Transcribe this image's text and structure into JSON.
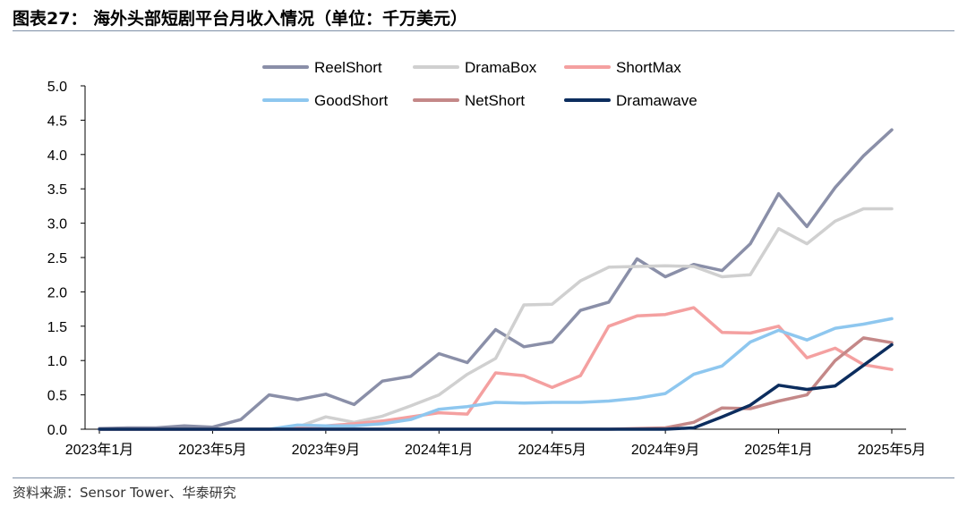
{
  "header": {
    "title": "图表27：  海外头部短剧平台月收入情况（单位：千万美元）"
  },
  "footer": {
    "source": "资料来源：Sensor Tower、华泰研究"
  },
  "chart_data": {
    "type": "line",
    "title": "",
    "xlabel": "",
    "ylabel": "",
    "ylim": [
      0,
      5
    ],
    "yticks": [
      "0.0",
      "0.5",
      "1.0",
      "1.5",
      "2.0",
      "2.5",
      "3.0",
      "3.5",
      "4.0",
      "4.5",
      "5.0"
    ],
    "x": [
      "2023-01",
      "2023-02",
      "2023-03",
      "2023-04",
      "2023-05",
      "2023-06",
      "2023-07",
      "2023-08",
      "2023-09",
      "2023-10",
      "2023-11",
      "2023-12",
      "2024-01",
      "2024-02",
      "2024-03",
      "2024-04",
      "2024-05",
      "2024-06",
      "2024-07",
      "2024-08",
      "2024-09",
      "2024-10",
      "2024-11",
      "2024-12",
      "2025-01",
      "2025-02",
      "2025-03",
      "2025-04",
      "2025-05"
    ],
    "xtick_labels": [
      {
        "index": 0,
        "label": "2023年1月"
      },
      {
        "index": 4,
        "label": "2023年5月"
      },
      {
        "index": 8,
        "label": "2023年9月"
      },
      {
        "index": 12,
        "label": "2024年1月"
      },
      {
        "index": 16,
        "label": "2024年5月"
      },
      {
        "index": 20,
        "label": "2024年9月"
      },
      {
        "index": 24,
        "label": "2025年1月"
      },
      {
        "index": 28,
        "label": "2025年5月"
      }
    ],
    "grid": false,
    "legend_position": "top-center",
    "series": [
      {
        "name": "ReelShort",
        "color": "#8a8fa8",
        "values": [
          0.01,
          0.02,
          0.02,
          0.05,
          0.03,
          0.14,
          0.5,
          0.43,
          0.51,
          0.36,
          0.7,
          0.77,
          1.1,
          0.97,
          1.45,
          1.2,
          1.27,
          1.73,
          1.85,
          2.48,
          2.22,
          2.4,
          2.31,
          2.7,
          3.43,
          2.95,
          3.52,
          3.98,
          4.36
        ]
      },
      {
        "name": "DramaBox",
        "color": "#d0d0d0",
        "values": [
          0,
          0,
          0,
          0,
          0,
          0,
          0,
          0.03,
          0.18,
          0.1,
          0.19,
          0.34,
          0.5,
          0.8,
          1.03,
          1.81,
          1.82,
          2.16,
          2.36,
          2.37,
          2.38,
          2.37,
          2.22,
          2.25,
          2.92,
          2.7,
          3.03,
          3.21,
          3.21
        ]
      },
      {
        "name": "ShortMax",
        "color": "#f4a0a0",
        "values": [
          0,
          0,
          0,
          0,
          0,
          0,
          0,
          0.02,
          0.05,
          0.08,
          0.12,
          0.18,
          0.24,
          0.22,
          0.82,
          0.78,
          0.61,
          0.78,
          1.5,
          1.65,
          1.67,
          1.77,
          1.41,
          1.4,
          1.5,
          1.04,
          1.18,
          0.94,
          0.87
        ]
      },
      {
        "name": "GoodShort",
        "color": "#8ec7ef",
        "values": [
          0,
          0,
          0,
          0,
          0,
          0,
          0,
          0.06,
          0.05,
          0.05,
          0.08,
          0.14,
          0.29,
          0.33,
          0.39,
          0.38,
          0.39,
          0.39,
          0.41,
          0.45,
          0.52,
          0.8,
          0.92,
          1.27,
          1.44,
          1.3,
          1.47,
          1.53,
          1.61
        ]
      },
      {
        "name": "NetShort",
        "color": "#c48888",
        "values": [
          0,
          0,
          0,
          0,
          0,
          0,
          0,
          0,
          0,
          0,
          0,
          0,
          0,
          0,
          0,
          0,
          0,
          0,
          0,
          0.01,
          0.02,
          0.1,
          0.31,
          0.3,
          0.41,
          0.5,
          1.0,
          1.33,
          1.26
        ]
      },
      {
        "name": "Dramawave",
        "color": "#0c2d5e",
        "values": [
          0,
          0,
          0,
          0,
          0,
          0,
          0,
          0,
          0,
          0,
          0,
          0,
          0,
          0,
          0,
          0,
          0,
          0,
          0,
          0,
          0,
          0.02,
          0.18,
          0.35,
          0.64,
          0.58,
          0.63,
          0.93,
          1.23
        ]
      }
    ]
  }
}
